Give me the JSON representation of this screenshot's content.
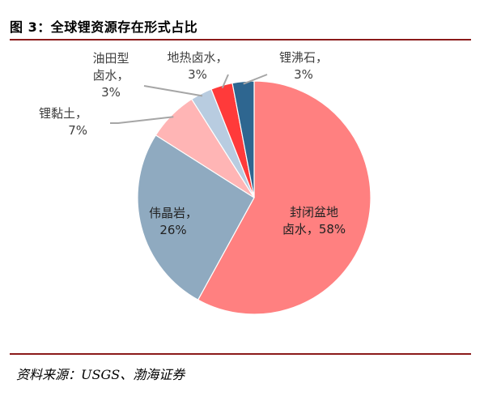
{
  "header": {
    "title": "图 3：全球锂资源存在形式占比"
  },
  "footer": {
    "source": "资料来源：USGS、渤海证券"
  },
  "colors": {
    "rule": "#8b1a1a",
    "leader_line": "#a6a6a6"
  },
  "chart_data": {
    "type": "pie",
    "title": "图 3：全球锂资源存在形式占比",
    "unit": "%",
    "slices": [
      {
        "name": "封闭盆地卤水",
        "value": 58,
        "label_lines": [
          "封闭盆地",
          "卤水，58%"
        ],
        "color": "#ff8080"
      },
      {
        "name": "伟晶岩",
        "value": 26,
        "label_lines": [
          "伟晶岩，",
          "26%"
        ],
        "color": "#8faac0"
      },
      {
        "name": "锂黏土",
        "value": 7,
        "label_lines": [
          "锂黏土，",
          "7%"
        ],
        "color": "#ffb5b5"
      },
      {
        "name": "油田型卤水",
        "value": 3,
        "label_lines": [
          "油田型",
          "卤水，",
          "3%"
        ],
        "color": "#b8cce0"
      },
      {
        "name": "地热卤水",
        "value": 3,
        "label_lines": [
          "地热卤水，",
          "3%"
        ],
        "color": "#ff3a3a"
      },
      {
        "name": "锂沸石",
        "value": 3,
        "label_lines": [
          "锂沸石，",
          "3%"
        ],
        "color": "#2e6690"
      }
    ]
  }
}
